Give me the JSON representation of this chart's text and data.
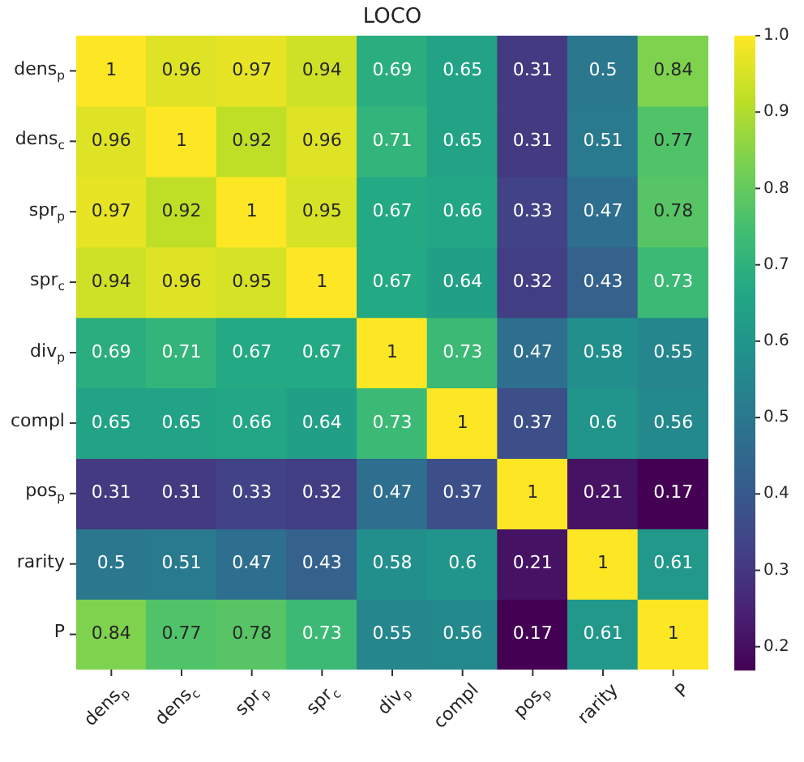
{
  "chart_data": {
    "type": "heatmap",
    "title": "LOCO",
    "categories": [
      "dens$_{p}$",
      "dens$_{c}$",
      "spr$_{p}$",
      "spr$_{c}$",
      "div$_{p}$",
      "compl",
      "pos$_{p}$",
      "rarity",
      "P"
    ],
    "y_categories": [
      "dens$_{p}$",
      "dens$_{c}$",
      "spr$_{p}$",
      "spr$_{c}$",
      "div$_{p}$",
      "compl",
      "pos$_{p}$",
      "rarity",
      "P"
    ],
    "cells": [
      [
        1,
        0.96,
        0.97,
        0.94,
        0.69,
        0.65,
        0.31,
        0.5,
        0.84
      ],
      [
        0.96,
        1,
        0.92,
        0.96,
        0.71,
        0.65,
        0.31,
        0.51,
        0.77
      ],
      [
        0.97,
        0.92,
        1,
        0.95,
        0.67,
        0.66,
        0.33,
        0.47,
        0.78
      ],
      [
        0.94,
        0.96,
        0.95,
        1,
        0.67,
        0.64,
        0.32,
        0.43,
        0.73
      ],
      [
        0.69,
        0.71,
        0.67,
        0.67,
        1,
        0.73,
        0.47,
        0.58,
        0.55
      ],
      [
        0.65,
        0.65,
        0.66,
        0.64,
        0.73,
        1,
        0.37,
        0.6,
        0.56
      ],
      [
        0.31,
        0.31,
        0.33,
        0.32,
        0.47,
        0.37,
        1,
        0.21,
        0.17
      ],
      [
        0.5,
        0.51,
        0.47,
        0.43,
        0.58,
        0.6,
        0.21,
        1,
        0.61
      ],
      [
        0.84,
        0.77,
        0.78,
        0.73,
        0.55,
        0.56,
        0.17,
        0.61,
        1
      ]
    ],
    "clim": [
      0.17,
      1
    ],
    "cticks": [
      0.2,
      0.3,
      0.4,
      0.5,
      0.6,
      0.7,
      0.8,
      0.9,
      {
        "value": 1,
        "label": "1.0"
      }
    ],
    "data_labels": true
  }
}
